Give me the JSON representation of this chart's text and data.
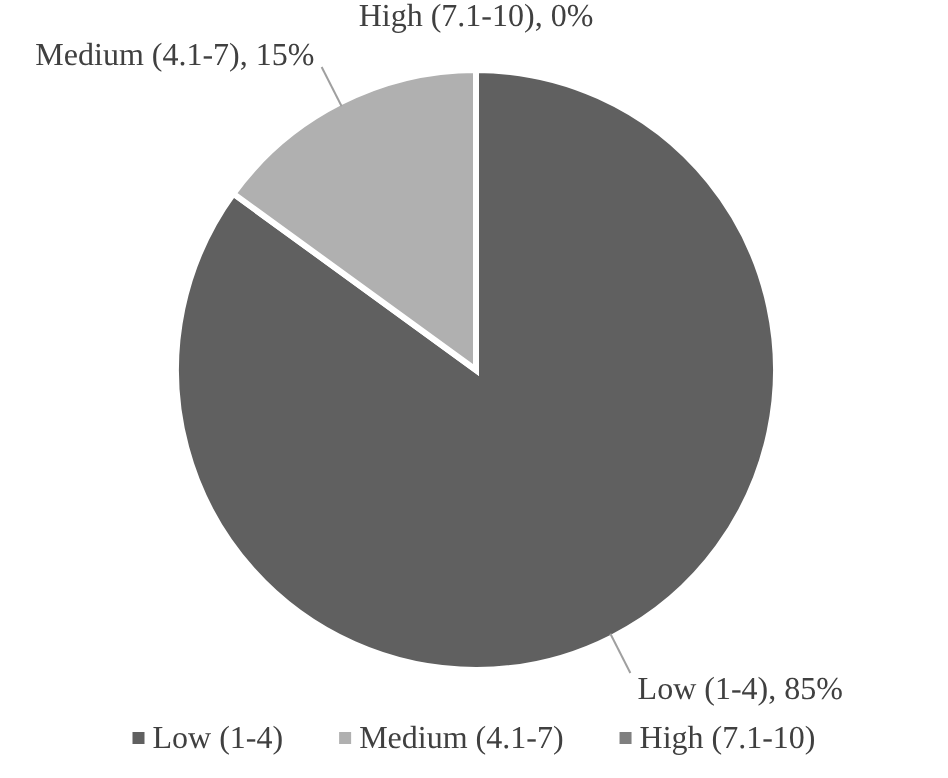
{
  "chart_data": {
    "type": "pie",
    "categories": [
      "Low (1-4)",
      "Medium (4.1-7)",
      "High (7.1-10)"
    ],
    "values": [
      85,
      15,
      0
    ],
    "colors": [
      "#606060",
      "#b0b0b0",
      "#7f7f7f"
    ],
    "value_labels": [
      "Low (1-4), 85%",
      "Medium (4.1-7), 15%",
      "High (7.1-10), 0%"
    ],
    "legend": "bottom"
  }
}
